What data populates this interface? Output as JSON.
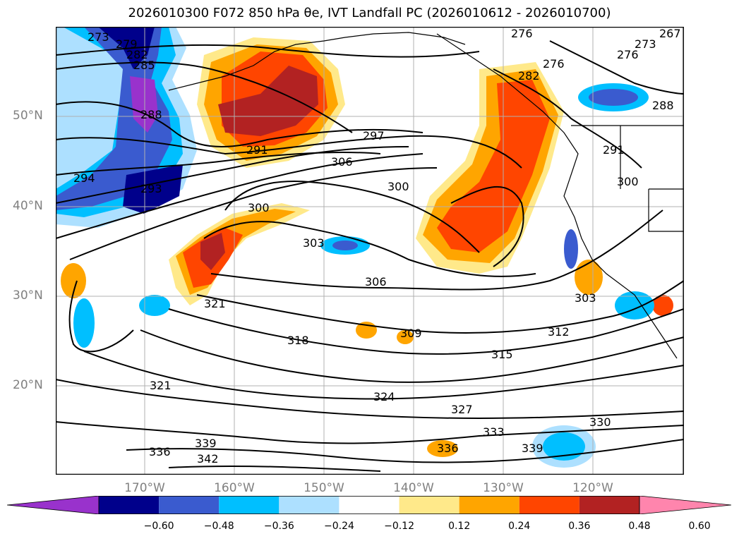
{
  "title": "2026010300 F072 850 hPa θe, IVT Landfall PC (2026010612 - 2026010700)",
  "lat_labels": [
    "50°N",
    "40°N",
    "30°N",
    "20°N"
  ],
  "lon_labels": [
    "170°W",
    "160°W",
    "150°W",
    "140°W",
    "130°W",
    "120°W"
  ],
  "colorbar": {
    "tick_labels": [
      "−0.60",
      "−0.48",
      "−0.36",
      "−0.24",
      "−0.12",
      "0.12",
      "0.24",
      "0.36",
      "0.48",
      "0.60"
    ],
    "colors": [
      "#9932CC",
      "#00008B",
      "#3A5BCF",
      "#00BFFF",
      "#ADE0FF",
      "#FFFFFF",
      "#FFE98A",
      "#FFA500",
      "#FF4500",
      "#B22222",
      "#FF85AD"
    ]
  },
  "contour_labels": [
    "273",
    "279",
    "282",
    "285",
    "288",
    "294",
    "293",
    "291",
    "297",
    "306",
    "300",
    "300",
    "303",
    "306",
    "309",
    "318",
    "321",
    "321",
    "324",
    "327",
    "312",
    "315",
    "303",
    "330",
    "333",
    "336",
    "336",
    "339",
    "339",
    "342",
    "276",
    "276",
    "273",
    "276",
    "282",
    "288",
    "291",
    "300",
    "267"
  ]
}
